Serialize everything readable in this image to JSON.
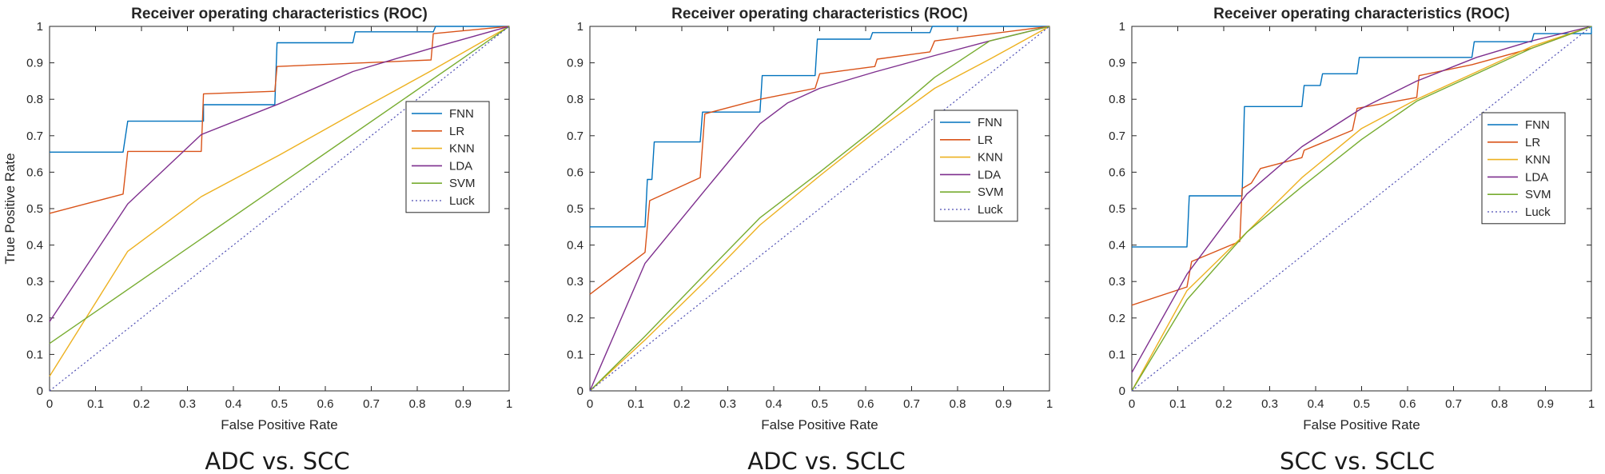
{
  "chart_data": [
    {
      "type": "line",
      "title": "Receiver operating characteristics (ROC)",
      "xlabel": "False Positive Rate",
      "ylabel": "True Positive Rate",
      "caption": "ADC vs. SCC",
      "xlim": [
        0,
        1
      ],
      "ylim": [
        0,
        1
      ],
      "xticks": [
        "0",
        "0.1",
        "0.2",
        "0.3",
        "0.4",
        "0.5",
        "0.6",
        "0.7",
        "0.8",
        "0.9",
        "1"
      ],
      "yticks": [
        "0",
        "0.1",
        "0.2",
        "0.3",
        "0.4",
        "0.5",
        "0.6",
        "0.7",
        "0.8",
        "0.9",
        "1"
      ],
      "legend_position": "right",
      "series": [
        {
          "name": "FNN",
          "color": "#0072BD",
          "points": [
            [
              0,
              0.655
            ],
            [
              0.16,
              0.655
            ],
            [
              0.17,
              0.74
            ],
            [
              0.335,
              0.74
            ],
            [
              0.335,
              0.785
            ],
            [
              0.49,
              0.785
            ],
            [
              0.495,
              0.955
            ],
            [
              0.66,
              0.955
            ],
            [
              0.665,
              0.985
            ],
            [
              0.835,
              0.985
            ],
            [
              0.84,
              1
            ],
            [
              1,
              1
            ]
          ]
        },
        {
          "name": "LR",
          "color": "#D95319",
          "points": [
            [
              0,
              0.487
            ],
            [
              0.16,
              0.54
            ],
            [
              0.17,
              0.657
            ],
            [
              0.33,
              0.657
            ],
            [
              0.335,
              0.815
            ],
            [
              0.49,
              0.822
            ],
            [
              0.495,
              0.89
            ],
            [
              0.83,
              0.908
            ],
            [
              0.835,
              0.98
            ],
            [
              1,
              1
            ]
          ]
        },
        {
          "name": "KNN",
          "color": "#EDB120",
          "points": [
            [
              0,
              0.04
            ],
            [
              0.17,
              0.383
            ],
            [
              0.33,
              0.533
            ],
            [
              0.5,
              0.647
            ],
            [
              0.66,
              0.76
            ],
            [
              0.83,
              0.878
            ],
            [
              1,
              1
            ]
          ]
        },
        {
          "name": "LDA",
          "color": "#7E2F8E",
          "points": [
            [
              0,
              0.19
            ],
            [
              0.17,
              0.513
            ],
            [
              0.33,
              0.703
            ],
            [
              0.5,
              0.788
            ],
            [
              0.66,
              0.876
            ],
            [
              0.83,
              0.94
            ],
            [
              1,
              1
            ]
          ]
        },
        {
          "name": "SVM",
          "color": "#77AC30",
          "points": [
            [
              0,
              0.13
            ],
            [
              1,
              1
            ]
          ]
        },
        {
          "name": "Luck",
          "color": "#4D4DB3",
          "dashed": true,
          "points": [
            [
              0,
              0
            ],
            [
              1,
              1
            ]
          ]
        }
      ]
    },
    {
      "type": "line",
      "title": "Receiver operating characteristics (ROC)",
      "xlabel": "False Positive Rate",
      "ylabel": "",
      "caption": "ADC vs. SCLC",
      "xlim": [
        0,
        1
      ],
      "ylim": [
        0,
        1
      ],
      "xticks": [
        "0",
        "0.1",
        "0.2",
        "0.3",
        "0.4",
        "0.5",
        "0.6",
        "0.7",
        "0.8",
        "0.9",
        "1"
      ],
      "yticks": [
        "0",
        "0.1",
        "0.2",
        "0.3",
        "0.4",
        "0.5",
        "0.6",
        "0.7",
        "0.8",
        "0.9",
        "1"
      ],
      "legend_position": "right",
      "series": [
        {
          "name": "FNN",
          "color": "#0072BD",
          "points": [
            [
              0,
              0.45
            ],
            [
              0.12,
              0.45
            ],
            [
              0.125,
              0.58
            ],
            [
              0.135,
              0.58
            ],
            [
              0.14,
              0.683
            ],
            [
              0.24,
              0.683
            ],
            [
              0.245,
              0.765
            ],
            [
              0.37,
              0.765
            ],
            [
              0.375,
              0.865
            ],
            [
              0.49,
              0.865
            ],
            [
              0.495,
              0.965
            ],
            [
              0.61,
              0.965
            ],
            [
              0.615,
              0.983
            ],
            [
              0.74,
              0.983
            ],
            [
              0.745,
              1
            ],
            [
              1,
              1
            ]
          ]
        },
        {
          "name": "LR",
          "color": "#D95319",
          "points": [
            [
              0,
              0.265
            ],
            [
              0.12,
              0.38
            ],
            [
              0.13,
              0.522
            ],
            [
              0.24,
              0.585
            ],
            [
              0.25,
              0.76
            ],
            [
              0.37,
              0.8
            ],
            [
              0.49,
              0.83
            ],
            [
              0.5,
              0.87
            ],
            [
              0.62,
              0.89
            ],
            [
              0.625,
              0.91
            ],
            [
              0.74,
              0.93
            ],
            [
              0.75,
              0.96
            ],
            [
              1,
              1
            ]
          ]
        },
        {
          "name": "KNN",
          "color": "#EDB120",
          "points": [
            [
              0,
              0
            ],
            [
              0.12,
              0.14
            ],
            [
              0.25,
              0.3
            ],
            [
              0.37,
              0.455
            ],
            [
              0.5,
              0.59
            ],
            [
              0.62,
              0.71
            ],
            [
              0.75,
              0.83
            ],
            [
              0.87,
              0.91
            ],
            [
              1,
              1
            ]
          ]
        },
        {
          "name": "LDA",
          "color": "#7E2F8E",
          "points": [
            [
              0,
              0
            ],
            [
              0.12,
              0.35
            ],
            [
              0.25,
              0.55
            ],
            [
              0.37,
              0.733
            ],
            [
              0.43,
              0.79
            ],
            [
              0.5,
              0.83
            ],
            [
              0.62,
              0.875
            ],
            [
              0.75,
              0.92
            ],
            [
              0.87,
              0.96
            ],
            [
              1,
              1
            ]
          ]
        },
        {
          "name": "SVM",
          "color": "#77AC30",
          "points": [
            [
              0,
              0
            ],
            [
              0.12,
              0.15
            ],
            [
              0.25,
              0.32
            ],
            [
              0.37,
              0.475
            ],
            [
              0.5,
              0.6
            ],
            [
              0.62,
              0.72
            ],
            [
              0.75,
              0.86
            ],
            [
              0.87,
              0.96
            ],
            [
              1,
              1
            ]
          ]
        },
        {
          "name": "Luck",
          "color": "#4D4DB3",
          "dashed": true,
          "points": [
            [
              0,
              0
            ],
            [
              1,
              1
            ]
          ]
        }
      ]
    },
    {
      "type": "line",
      "title": "Receiver operating characteristics (ROC)",
      "xlabel": "False Positive Rate",
      "ylabel": "",
      "caption": "SCC vs. SCLC",
      "xlim": [
        0,
        1
      ],
      "ylim": [
        0,
        1
      ],
      "xticks": [
        "0",
        "0.1",
        "0.2",
        "0.3",
        "0.4",
        "0.5",
        "0.6",
        "0.7",
        "0.8",
        "0.9",
        "1"
      ],
      "yticks": [
        "0",
        "0.1",
        "0.2",
        "0.3",
        "0.4",
        "0.5",
        "0.6",
        "0.7",
        "0.8",
        "0.9",
        "1"
      ],
      "legend_position": "right",
      "series": [
        {
          "name": "FNN",
          "color": "#0072BD",
          "points": [
            [
              0,
              0.395
            ],
            [
              0.12,
              0.395
            ],
            [
              0.125,
              0.535
            ],
            [
              0.24,
              0.535
            ],
            [
              0.245,
              0.78
            ],
            [
              0.37,
              0.78
            ],
            [
              0.375,
              0.838
            ],
            [
              0.41,
              0.838
            ],
            [
              0.415,
              0.87
            ],
            [
              0.49,
              0.87
            ],
            [
              0.495,
              0.915
            ],
            [
              0.74,
              0.915
            ],
            [
              0.745,
              0.958
            ],
            [
              0.87,
              0.958
            ],
            [
              0.875,
              0.98
            ],
            [
              1,
              0.98
            ],
            [
              1,
              1
            ]
          ]
        },
        {
          "name": "LR",
          "color": "#D95319",
          "points": [
            [
              0,
              0.235
            ],
            [
              0.12,
              0.285
            ],
            [
              0.13,
              0.355
            ],
            [
              0.235,
              0.41
            ],
            [
              0.24,
              0.555
            ],
            [
              0.26,
              0.57
            ],
            [
              0.28,
              0.61
            ],
            [
              0.37,
              0.64
            ],
            [
              0.375,
              0.66
            ],
            [
              0.48,
              0.715
            ],
            [
              0.49,
              0.775
            ],
            [
              0.62,
              0.805
            ],
            [
              0.625,
              0.865
            ],
            [
              0.74,
              0.895
            ],
            [
              0.87,
              0.94
            ],
            [
              1,
              1
            ]
          ]
        },
        {
          "name": "KNN",
          "color": "#EDB120",
          "points": [
            [
              0,
              0
            ],
            [
              0.12,
              0.275
            ],
            [
              0.25,
              0.435
            ],
            [
              0.37,
              0.585
            ],
            [
              0.5,
              0.72
            ],
            [
              0.62,
              0.8
            ],
            [
              0.75,
              0.875
            ],
            [
              0.87,
              0.945
            ],
            [
              1,
              1
            ]
          ]
        },
        {
          "name": "LDA",
          "color": "#7E2F8E",
          "points": [
            [
              0,
              0.05
            ],
            [
              0.12,
              0.32
            ],
            [
              0.25,
              0.54
            ],
            [
              0.37,
              0.67
            ],
            [
              0.5,
              0.775
            ],
            [
              0.62,
              0.85
            ],
            [
              0.75,
              0.915
            ],
            [
              0.87,
              0.96
            ],
            [
              1,
              1
            ]
          ]
        },
        {
          "name": "SVM",
          "color": "#77AC30",
          "points": [
            [
              0,
              0
            ],
            [
              0.12,
              0.25
            ],
            [
              0.25,
              0.435
            ],
            [
              0.37,
              0.56
            ],
            [
              0.5,
              0.69
            ],
            [
              0.62,
              0.795
            ],
            [
              0.75,
              0.87
            ],
            [
              0.87,
              0.94
            ],
            [
              1,
              1
            ]
          ]
        },
        {
          "name": "Luck",
          "color": "#4D4DB3",
          "dashed": true,
          "points": [
            [
              0,
              0
            ],
            [
              1,
              1
            ]
          ]
        }
      ]
    }
  ]
}
